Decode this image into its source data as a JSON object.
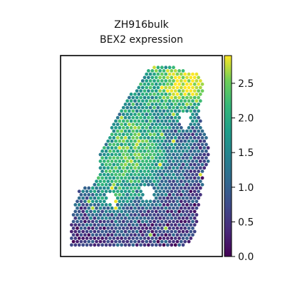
{
  "chart_data": {
    "type": "scatter",
    "title": "ZH916bulk",
    "subtitle": "BEX2 expression",
    "xlabel": "",
    "ylabel": "",
    "color_scale": {
      "name": "viridis",
      "range": [
        0.0,
        2.9
      ],
      "ticks": [
        0.0,
        0.5,
        1.0,
        1.5,
        2.0,
        2.5
      ],
      "tick_labels": [
        "0.0",
        "0.5",
        "1.0",
        "1.5",
        "2.0",
        "2.5"
      ]
    },
    "colors": {
      "low": "#440154",
      "mid_low": "#3b528b",
      "mid": "#21918c",
      "mid_high": "#5ec962",
      "high": "#fde725"
    },
    "grid": false,
    "legend": "colorbar-right",
    "summary": "hexagonal spatial spots; most values 0.0-1.0, higher values (1.5-2.9) concentrated in the upper and middle-left tissue region"
  }
}
